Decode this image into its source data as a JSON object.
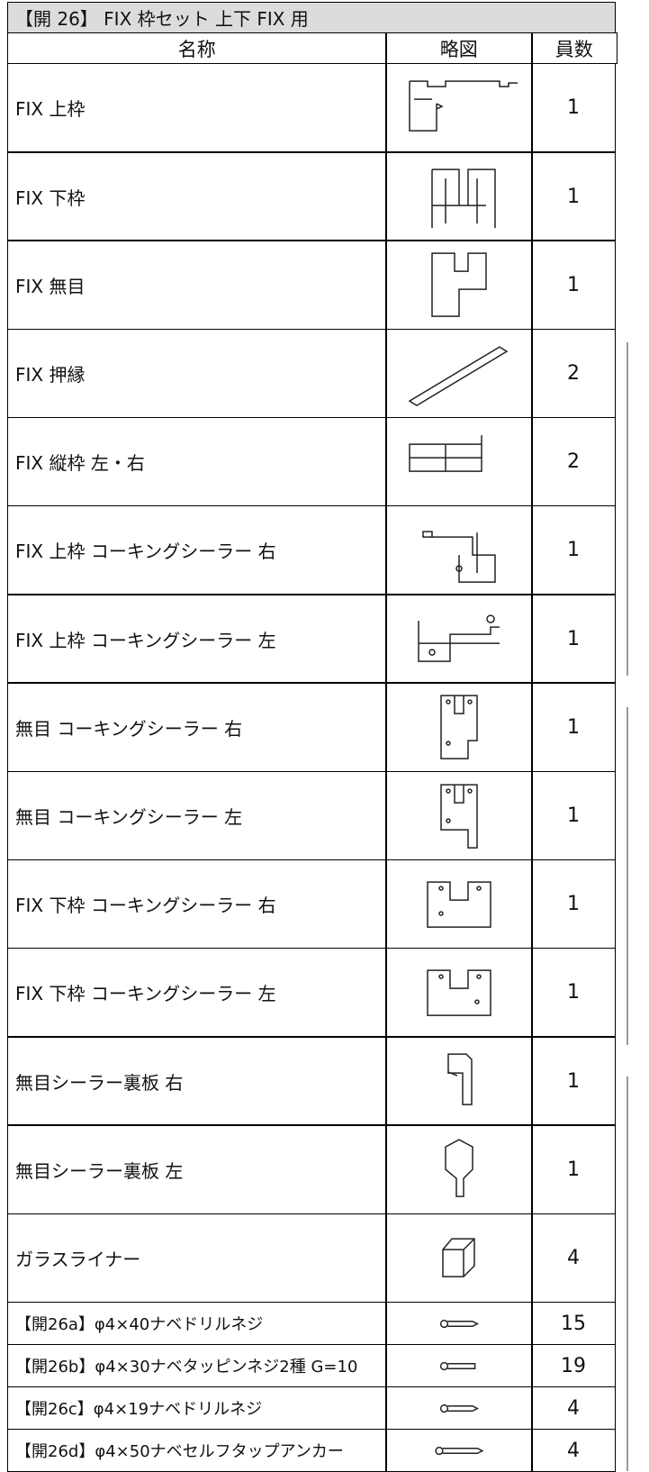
{
  "header": {
    "title": "【開 26】 FIX 枠セット 上下 FIX 用"
  },
  "table": {
    "columns": [
      "名称",
      "略図",
      "員数"
    ],
    "rows": [
      [
        "FIX 上枠",
        1
      ],
      [
        "FIX 下枠",
        1
      ],
      [
        "FIX 無目",
        1
      ],
      [
        "FIX 押縁",
        2
      ],
      [
        "FIX 縦枠 左・右",
        2
      ],
      [
        "FIX 上枠 コーキングシーラー 右",
        1
      ],
      [
        "FIX 上枠 コーキングシーラー 左",
        1
      ],
      [
        "無目 コーキングシーラー 右",
        1
      ],
      [
        "無目 コーキングシーラー 左",
        1
      ],
      [
        "FIX 下枠 コーキングシーラー 右",
        1
      ],
      [
        "FIX 下枠 コーキングシーラー 左",
        1
      ],
      [
        "無目シーラー裏板 右",
        1
      ],
      [
        "無目シーラー裏板 左",
        1
      ],
      [
        "ガラスライナー",
        4
      ],
      [
        "【開26a】φ4×40ナベドリルネジ",
        15
      ],
      [
        "【開26b】φ4×30ナベタッピンネジ2種 G=10",
        19
      ],
      [
        "【開26c】φ4×19ナベドリルネジ",
        4
      ],
      [
        "【開26d】φ4×50ナベセルフタップアンカー",
        4
      ]
    ]
  }
}
